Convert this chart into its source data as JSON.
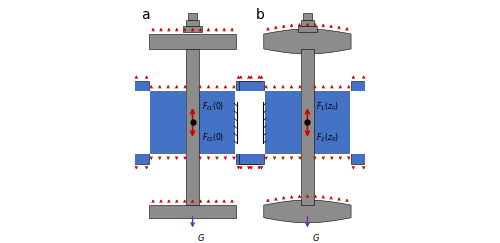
{
  "bg_color": "#ffffff",
  "gray_color": "#8c8c8c",
  "blue_color": "#4472c4",
  "red_arrow_color": "#cc0000",
  "purple_arrow_color": "#7030a0",
  "text_color": "#000000",
  "fig_width": 5.0,
  "fig_height": 2.43
}
